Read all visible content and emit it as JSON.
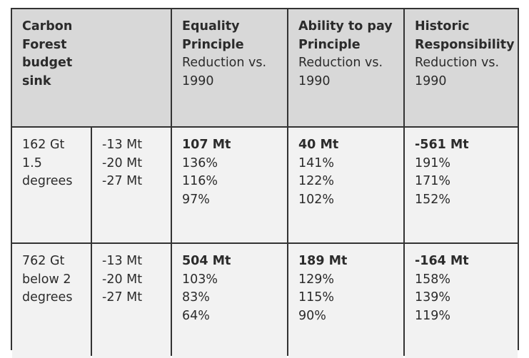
{
  "header": {
    "col1": [
      "Carbon",
      "Forest",
      "budget",
      "sink"
    ],
    "equality": {
      "title_1": "Equality",
      "title_2": "Principle",
      "sub_1": "Reduction vs.",
      "sub_2": "1990"
    },
    "ability": {
      "title_1": "Ability to pay",
      "title_2": "Principle",
      "sub_1": "Reduction vs.",
      "sub_2": "1990"
    },
    "historic": {
      "title_1": "Historic",
      "title_2": "Responsibility",
      "sub_1": "Reduction vs.",
      "sub_2": "1990"
    }
  },
  "rows": [
    {
      "budget": [
        "162 Gt",
        "1.5",
        "degrees"
      ],
      "sink": [
        "-13 Mt",
        "-20 Mt",
        "-27 Mt"
      ],
      "equality": {
        "total": "107 Mt",
        "values": [
          "136%",
          "116%",
          "97%"
        ]
      },
      "ability": {
        "total": "40 Mt",
        "values": [
          "141%",
          "122%",
          "102%"
        ]
      },
      "historic": {
        "total": "-561 Mt",
        "values": [
          "191%",
          "171%",
          "152%"
        ]
      }
    },
    {
      "budget": [
        "762 Gt",
        "below 2",
        "degrees"
      ],
      "sink": [
        "-13 Mt",
        "-20 Mt",
        "-27 Mt"
      ],
      "equality": {
        "total": "504 Mt",
        "values": [
          "103%",
          "83%",
          "64%"
        ]
      },
      "ability": {
        "total": "189 Mt",
        "values": [
          "129%",
          "115%",
          "90%"
        ]
      },
      "historic": {
        "total": "-164 Mt",
        "values": [
          "158%",
          "139%",
          "119%"
        ]
      }
    }
  ]
}
